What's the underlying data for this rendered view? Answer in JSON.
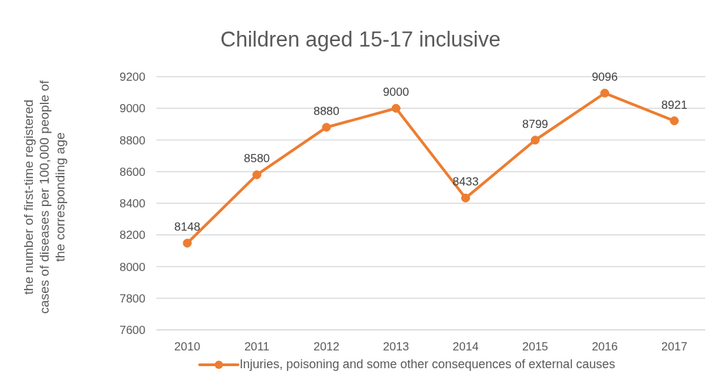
{
  "chart_data": {
    "type": "line",
    "title": "Children aged 15-17 inclusive",
    "ylabel": "the number of first-time registered cases of diseases per 100,000 people of the corresponding age",
    "categories": [
      "2010",
      "2011",
      "2012",
      "2013",
      "2014",
      "2015",
      "2016",
      "2017"
    ],
    "series": [
      {
        "name": "Injuries, poisoning and some other consequences of external causes",
        "color": "#ed7d31",
        "values": [
          8148,
          8580,
          8880,
          9000,
          8433,
          8799,
          9096,
          8921
        ]
      }
    ],
    "ylim": [
      7600,
      9200
    ],
    "yticks": [
      7600,
      7800,
      8000,
      8200,
      8400,
      8600,
      8800,
      9000,
      9200
    ],
    "grid": "y",
    "legend": "bottom",
    "marker": "circle",
    "line_style": "solid",
    "data_labels": true
  }
}
